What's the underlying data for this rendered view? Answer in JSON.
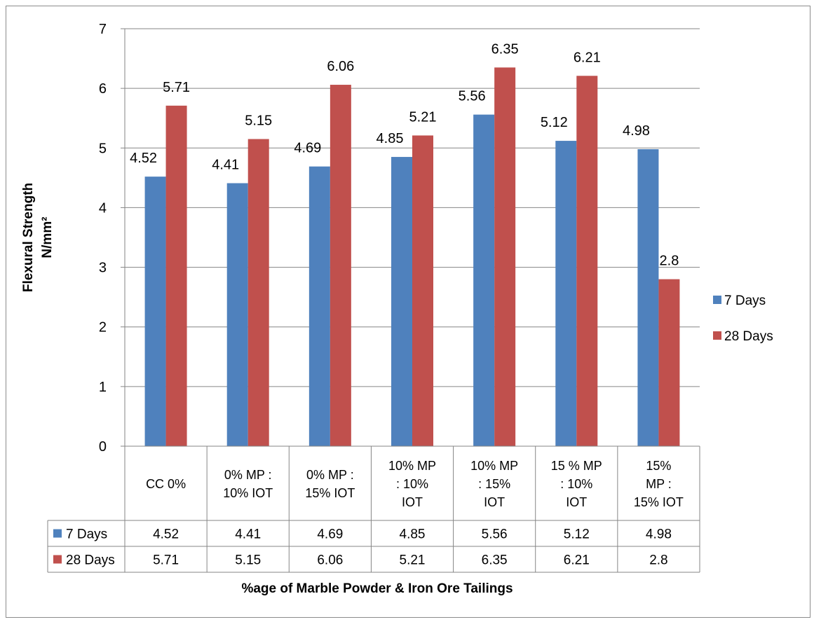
{
  "chart_data": {
    "type": "bar",
    "categories": [
      [
        "CC 0%"
      ],
      [
        "0% MP :",
        "10% IOT"
      ],
      [
        "0% MP :",
        "15% IOT"
      ],
      [
        "10%  MP",
        ": 10%",
        "IOT"
      ],
      [
        "10%  MP",
        ": 15%",
        "IOT"
      ],
      [
        "15 % MP",
        ": 10%",
        "IOT"
      ],
      [
        "15%",
        "MP :",
        "15%  IOT"
      ]
    ],
    "series": [
      {
        "name": "7 Days",
        "color": "#4f81bd",
        "values": [
          4.52,
          4.41,
          4.69,
          4.85,
          5.56,
          5.12,
          4.98
        ]
      },
      {
        "name": "28 Days",
        "color": "#c0504d",
        "values": [
          5.71,
          5.15,
          6.06,
          5.21,
          6.35,
          6.21,
          2.8
        ]
      }
    ],
    "ylim": [
      0,
      7
    ],
    "yticks": [
      0,
      1,
      2,
      3,
      4,
      5,
      6,
      7
    ],
    "ylabel_lines": [
      "Flexural Strength",
      "N/mm²"
    ],
    "xlabel": "%age of Marble Powder & Iron Ore Tailings",
    "grid": true,
    "legend": "right",
    "data_table": true
  }
}
